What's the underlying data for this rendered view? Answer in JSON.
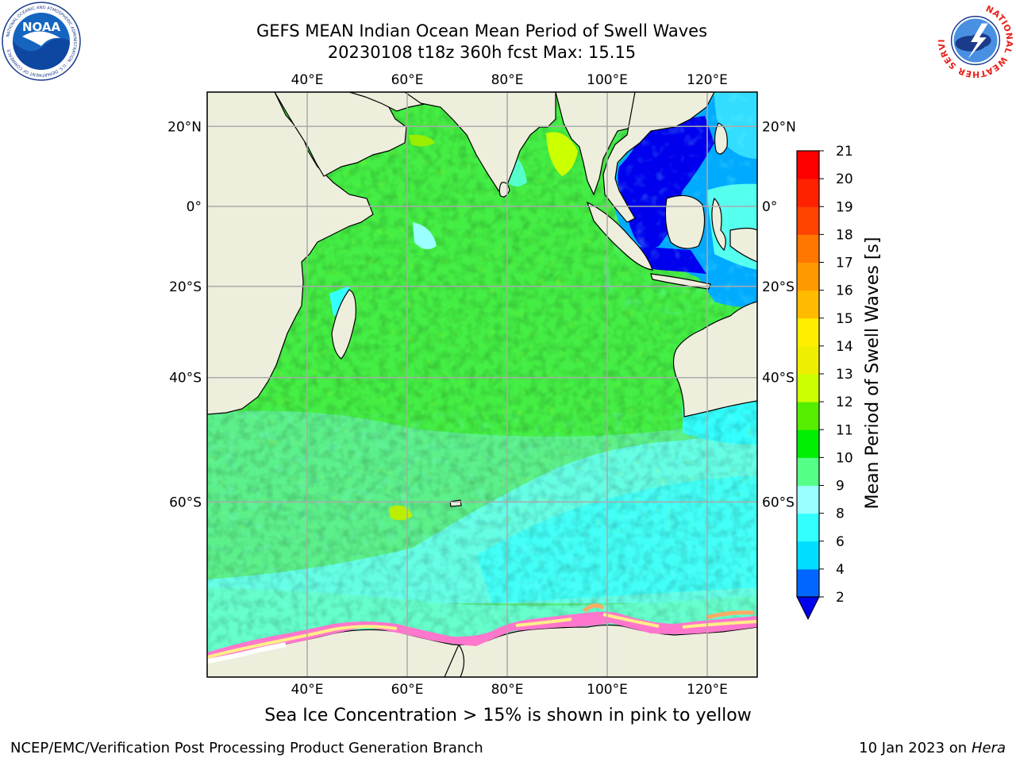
{
  "title": {
    "line1": "GEFS MEAN Indian Ocean Mean Period of Swell Waves",
    "line2": "20230108 t18z 360h fcst   Max: 15.15"
  },
  "map": {
    "lon_ticks": [
      "40°E",
      "60°E",
      "80°E",
      "100°E",
      "120°E"
    ],
    "lat_ticks": [
      "20°N",
      "0°",
      "20°S",
      "40°S",
      "60°S"
    ],
    "extent": {
      "lon": [
        20,
        130
      ],
      "lat": [
        -76,
        28
      ]
    },
    "gridlines": true,
    "colors": {
      "land": "#eeeedd",
      "grid": "#aaaaaa",
      "coast": "#000000"
    }
  },
  "colorbar": {
    "title": "Mean Period of Swell Waves [s]",
    "labels": [
      "2",
      "4",
      "6",
      "8",
      "9",
      "10",
      "11",
      "12",
      "13",
      "14",
      "15",
      "16",
      "17",
      "18",
      "19",
      "20",
      "21"
    ],
    "colors": [
      "#0066ff",
      "#00ddff",
      "#33ffff",
      "#99ffff",
      "#55ff88",
      "#00ee00",
      "#55ee00",
      "#ccff00",
      "#eeee00",
      "#ffee00",
      "#ffbb00",
      "#ff9900",
      "#ff7700",
      "#ff4400",
      "#ff2200",
      "#ff0000"
    ],
    "under_color": "#0000ee"
  },
  "note": "Sea Ice Concentration > 15% is shown in pink to yellow",
  "footer": {
    "credit": "NCEP/EMC/Verification Post Processing Product Generation Branch",
    "date": "10 Jan 2023 on ",
    "host": "Hera"
  },
  "logos": {
    "noaa": {
      "text": "NOAA",
      "ring": "NATIONAL OCEANIC AND ATMOSPHERIC ADMINISTRATION · U.S. DEPARTMENT OF COMMERCE"
    },
    "nws": {
      "ring": "NATIONAL WEATHER SERVICE"
    }
  }
}
